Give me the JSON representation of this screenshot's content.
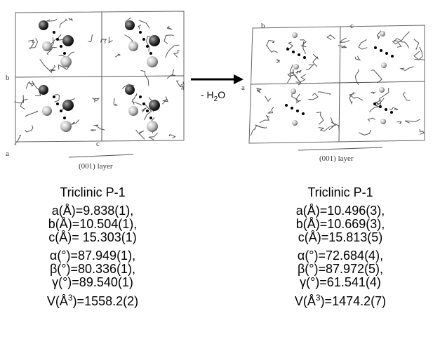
{
  "left": {
    "axis_labels": [
      "b",
      "a",
      "c"
    ],
    "layer_label": "(001) layer",
    "crystal_system": "Triclinic P-1",
    "cell_lengths": [
      "a(Å)=9.838(1),",
      "b(Å)=10.504(1),",
      "c(Å)= 15.303(1)"
    ],
    "cell_angles": [
      "α(°)=87.949(1),",
      "β(°)=80.336(1),",
      "γ(°)=89.540(1)"
    ],
    "volume": {
      "prefix": "V(Å",
      "superscript": "3",
      "suffix": ")=1558.2(2)"
    }
  },
  "arrow": {
    "label": "- H",
    "subscript": "2",
    "label_end": "O"
  },
  "right": {
    "axis_labels": [
      "b",
      "c",
      "a"
    ],
    "layer_label": "(001) layer",
    "crystal_system": "Triclinic P-1",
    "cell_lengths": [
      "a(Å)=10.496(3),",
      "b(Å)=10.669(3),",
      "c(Å)=15.813(5)"
    ],
    "cell_angles": [
      "α(°)=72.684(4),",
      "β(°)=87.972(5),",
      "γ(°)=61.541(4)"
    ],
    "volume": {
      "prefix": "V(Å",
      "superscript": "3",
      "suffix": ")=1474.2(7)"
    }
  }
}
